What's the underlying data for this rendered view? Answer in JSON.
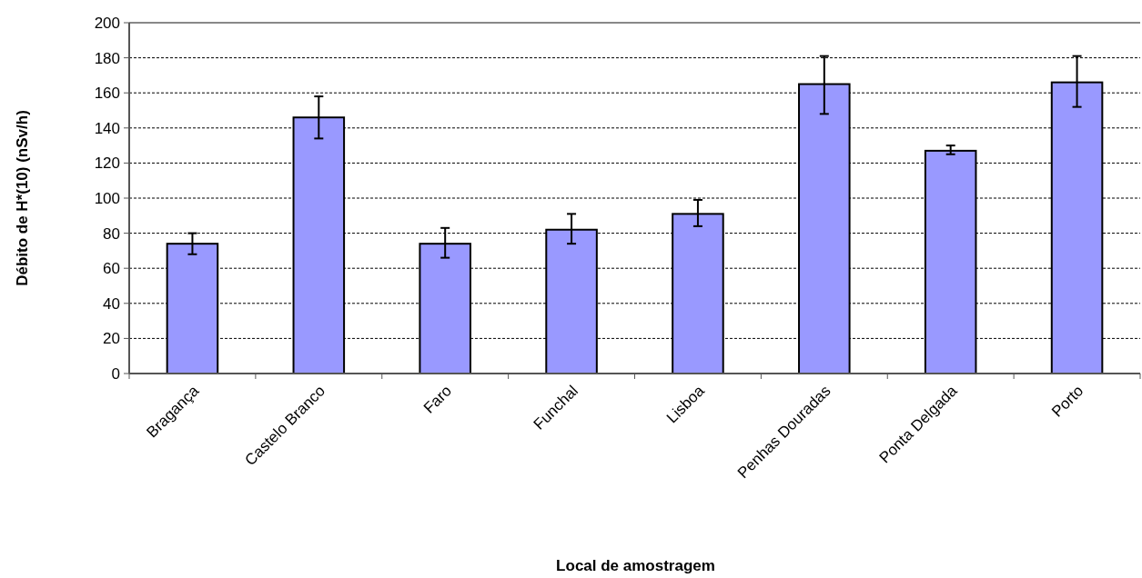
{
  "chart_data": {
    "type": "bar",
    "xlabel": "Local de amostragem",
    "ylabel": "Débito de H*(10) (nSv/h)",
    "categories": [
      "Bragança",
      "Castelo Branco",
      "Faro",
      "Funchal",
      "Lisboa",
      "Penhas Douradas",
      "Ponta Delgada",
      "Porto"
    ],
    "values": [
      74,
      146,
      74,
      82,
      91,
      165,
      127,
      166
    ],
    "errors": [
      [
        68,
        80
      ],
      [
        134,
        158
      ],
      [
        66,
        83
      ],
      [
        74,
        91
      ],
      [
        84,
        99
      ],
      [
        148,
        181
      ],
      [
        125,
        130
      ],
      [
        152,
        181
      ]
    ],
    "color": "#9999ff",
    "ylim": [
      0,
      200
    ],
    "yticks": [
      0,
      20,
      40,
      60,
      80,
      100,
      120,
      140,
      160,
      180,
      200
    ],
    "grid": "y"
  }
}
